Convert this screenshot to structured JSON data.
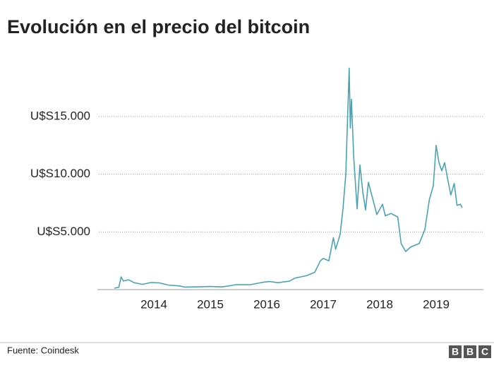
{
  "chart_data": {
    "type": "line",
    "title": "Evolución en el precio del bitcoin",
    "x": [
      2013.8,
      2013.88,
      2013.92,
      2013.96,
      2014.05,
      2014.15,
      2014.3,
      2014.45,
      2014.6,
      2014.75,
      2014.95,
      2015.05,
      2015.3,
      2015.5,
      2015.7,
      2015.85,
      2015.95,
      2016.2,
      2016.45,
      2016.55,
      2016.7,
      2016.9,
      2017.0,
      2017.1,
      2017.2,
      2017.35,
      2017.45,
      2017.5,
      2017.6,
      2017.68,
      2017.72,
      2017.8,
      2017.85,
      2017.9,
      2017.96,
      2017.98,
      2018.0,
      2018.04,
      2018.1,
      2018.15,
      2018.2,
      2018.25,
      2018.3,
      2018.37,
      2018.45,
      2018.55,
      2018.6,
      2018.7,
      2018.82,
      2018.88,
      2018.96,
      2019.05,
      2019.2,
      2019.3,
      2019.38,
      2019.45,
      2019.5,
      2019.55,
      2019.6,
      2019.65,
      2019.7,
      2019.76,
      2019.82,
      2019.87,
      2019.93,
      2019.96
    ],
    "values": [
      120,
      200,
      1100,
      750,
      850,
      600,
      450,
      620,
      580,
      400,
      320,
      220,
      240,
      270,
      230,
      330,
      430,
      420,
      650,
      700,
      600,
      730,
      1000,
      1100,
      1200,
      1500,
      2500,
      2700,
      2500,
      4500,
      3500,
      4800,
      7000,
      10000,
      19200,
      14000,
      16500,
      11500,
      7000,
      10800,
      8500,
      6900,
      9300,
      8000,
      6500,
      7400,
      6400,
      6600,
      6300,
      4000,
      3300,
      3700,
      4000,
      5200,
      7800,
      9000,
      12500,
      11000,
      10300,
      11000,
      9700,
      8200,
      9200,
      7300,
      7400,
      7100
    ],
    "color": "#4aa3b5",
    "xlim": [
      2013.5,
      2020.3
    ],
    "xticks": [
      {
        "value": 2014.5,
        "label": "2014"
      },
      {
        "value": 2015.5,
        "label": "2015"
      },
      {
        "value": 2016.5,
        "label": "2016"
      },
      {
        "value": 2017.5,
        "label": "2017"
      },
      {
        "value": 2018.5,
        "label": "2018"
      },
      {
        "value": 2019.5,
        "label": "2019"
      }
    ],
    "ylim": [
      0,
      19500
    ],
    "yticks": [
      {
        "value": 5000,
        "label": "U$S5.000"
      },
      {
        "value": 10000,
        "label": "U$S10.000"
      },
      {
        "value": 15000,
        "label": "U$S15.000"
      }
    ],
    "grid": true
  },
  "footer": {
    "source": "Fuente: Coindesk",
    "logo": [
      "B",
      "B",
      "C"
    ]
  }
}
